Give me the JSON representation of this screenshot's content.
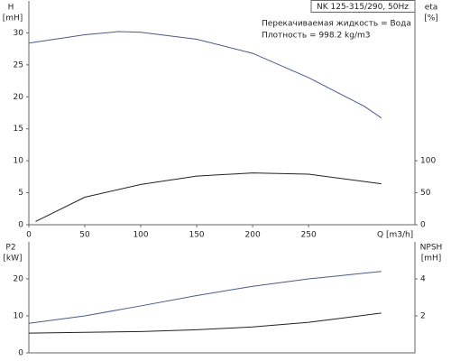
{
  "chart_data": [
    {
      "type": "line",
      "title": "NK 125-315/290, 50Hz",
      "annotations": [
        "Перекачиваемая жидкость = Вода",
        "Плотность = 998.2 kg/m3"
      ],
      "ylabel": "H",
      "yunit": "[mH]",
      "y2label": "eta",
      "y2unit": "[%]",
      "xlabel": "Q [m3/h]",
      "xlim": [
        0,
        345
      ],
      "xticks": [
        0,
        50,
        100,
        150,
        200,
        250
      ],
      "ylim": [
        0,
        35
      ],
      "yticks": [
        0,
        5,
        10,
        15,
        20,
        25,
        30
      ],
      "y2lim": [
        0,
        350
      ],
      "y2ticks": [
        0,
        50,
        100
      ],
      "series": [
        {
          "name": "H",
          "color": "#4a5a8a",
          "x": [
            0,
            50,
            80,
            100,
            150,
            200,
            250,
            300,
            315
          ],
          "values": [
            28.4,
            29.7,
            30.2,
            30.1,
            29,
            26.8,
            23,
            18.5,
            16.7
          ]
        },
        {
          "name": "eta",
          "color": "#222222",
          "axis": "y2",
          "x": [
            6,
            50,
            100,
            150,
            200,
            250,
            315
          ],
          "values": [
            5,
            43,
            63,
            76,
            81,
            79,
            64
          ]
        }
      ]
    },
    {
      "type": "line",
      "ylabel": "P2",
      "yunit": "[kW]",
      "y2label": "NPSH",
      "y2unit": "[mH]",
      "xlim": [
        0,
        345
      ],
      "ylim": [
        0,
        30
      ],
      "yticks": [
        0,
        10,
        20
      ],
      "y2lim": [
        0,
        6
      ],
      "y2ticks": [
        2,
        4
      ],
      "series": [
        {
          "name": "P2",
          "color": "#4a5a8a",
          "x": [
            0,
            50,
            100,
            150,
            200,
            250,
            315
          ],
          "values": [
            8,
            10,
            12.7,
            15.5,
            18,
            20,
            22
          ]
        },
        {
          "name": "NPSH",
          "color": "#222222",
          "axis": "y2",
          "x": [
            0,
            100,
            150,
            200,
            250,
            315
          ],
          "values": [
            1.07,
            1.15,
            1.25,
            1.4,
            1.65,
            2.15
          ]
        }
      ]
    }
  ]
}
